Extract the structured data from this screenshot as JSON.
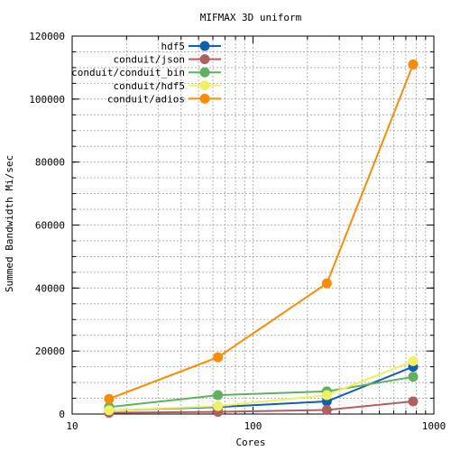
{
  "chart_data": {
    "type": "line",
    "title": "MIFMAX 3D uniform",
    "xlabel": "Cores",
    "ylabel": "Summed Bandwidth Mi/sec",
    "x_scale": "log",
    "xlim": [
      10,
      1000
    ],
    "ylim": [
      0,
      120000
    ],
    "x_ticks": [
      10,
      100,
      1000
    ],
    "y_ticks": [
      0,
      20000,
      40000,
      60000,
      80000,
      100000,
      120000
    ],
    "grid": true,
    "legend_position": "top-left",
    "x": [
      16,
      64,
      256,
      768
    ],
    "series": [
      {
        "name": "hdf5",
        "color": "#1060b0",
        "values": [
          1200,
          2200,
          4000,
          15000
        ]
      },
      {
        "name": "conduit/json",
        "color": "#b06060",
        "values": [
          400,
          700,
          1300,
          4000
        ]
      },
      {
        "name": "conduit/conduit_bin",
        "color": "#60b060",
        "values": [
          2200,
          6000,
          7200,
          11800
        ]
      },
      {
        "name": "conduit/hdf5",
        "color": "#f0f060",
        "values": [
          1200,
          2500,
          6000,
          16800
        ]
      },
      {
        "name": "conduit/adios",
        "color": "#ff8c00",
        "values": [
          4800,
          18000,
          41500,
          111000
        ]
      }
    ]
  }
}
